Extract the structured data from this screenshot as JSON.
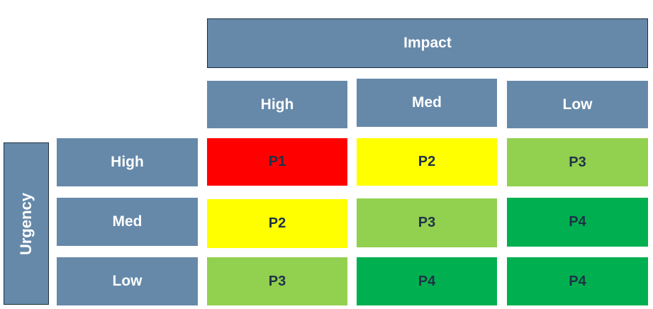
{
  "impact_title": "Impact",
  "urgency_title": "Urgency",
  "impact_levels": [
    "High",
    "Med",
    "Low"
  ],
  "urgency_levels": [
    "High",
    "Med",
    "Low"
  ],
  "matrix": [
    [
      "P1",
      "P2",
      "P3"
    ],
    [
      "P2",
      "P3",
      "P4"
    ],
    [
      "P3",
      "P4",
      "P4"
    ]
  ],
  "priority_colors": {
    "P1": "#ff0000",
    "P2": "#ffff00",
    "P3": "#92d050",
    "P4": "#00b050"
  },
  "header_color": "#6689aa"
}
